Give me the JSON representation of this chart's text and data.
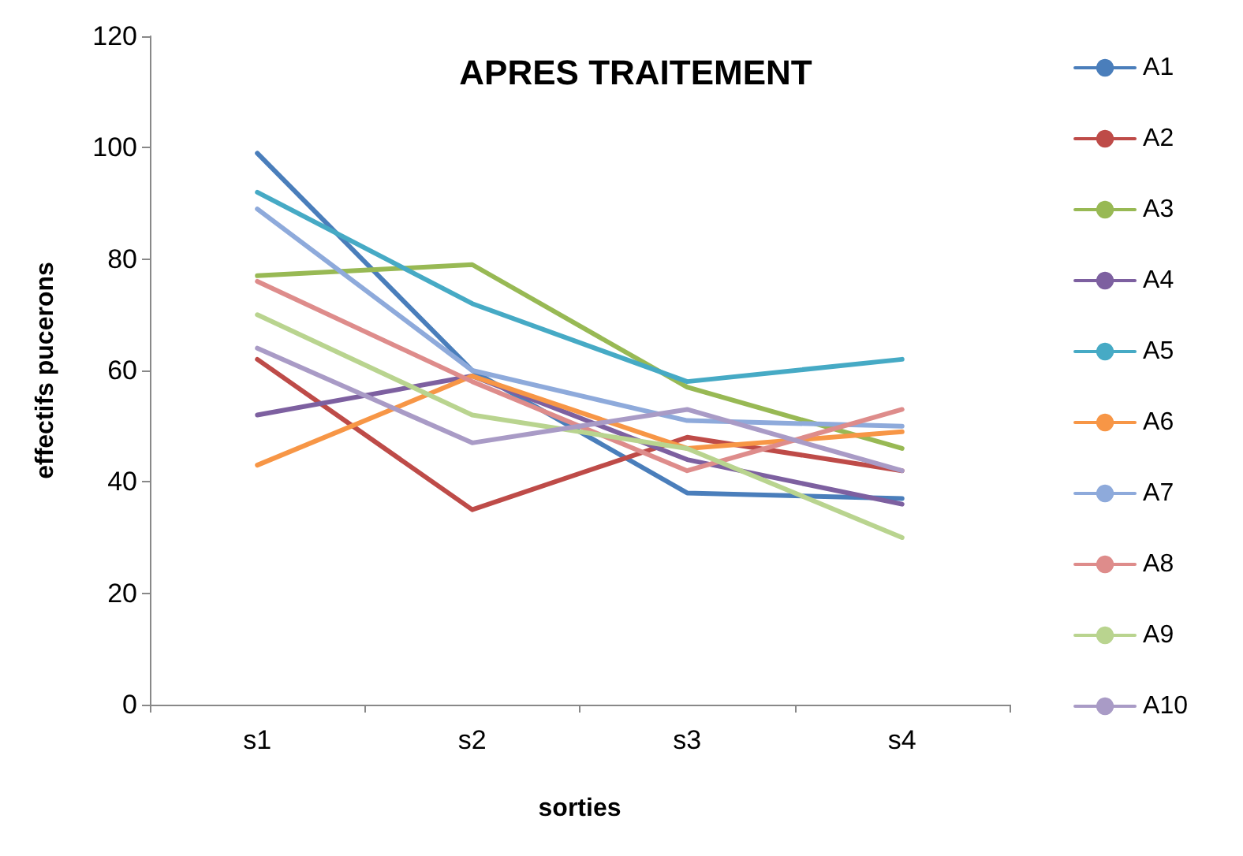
{
  "chart_data": {
    "type": "line",
    "title": "APRES TRAITEMENT",
    "xlabel": "sorties",
    "ylabel": "effectifs pucerons",
    "categories": [
      "s1",
      "s2",
      "s3",
      "s4"
    ],
    "series": [
      {
        "name": "A1",
        "color": "#4a7ebb",
        "values": [
          99,
          60,
          38,
          37
        ]
      },
      {
        "name": "A2",
        "color": "#be4b48",
        "values": [
          62,
          35,
          48,
          42
        ]
      },
      {
        "name": "A3",
        "color": "#98b954",
        "values": [
          77,
          79,
          57,
          46
        ]
      },
      {
        "name": "A4",
        "color": "#7d60a0",
        "values": [
          52,
          59,
          44,
          36
        ]
      },
      {
        "name": "A5",
        "color": "#46aac5",
        "values": [
          92,
          72,
          58,
          62
        ]
      },
      {
        "name": "A6",
        "color": "#f79646",
        "values": [
          43,
          59,
          46,
          49
        ]
      },
      {
        "name": "A7",
        "color": "#8eaadb",
        "values": [
          89,
          60,
          51,
          50
        ]
      },
      {
        "name": "A8",
        "color": "#de8c8b",
        "values": [
          76,
          58,
          42,
          53
        ]
      },
      {
        "name": "A9",
        "color": "#b9d48f",
        "values": [
          70,
          52,
          46,
          30
        ]
      },
      {
        "name": "A10",
        "color": "#a99bc6",
        "values": [
          64,
          47,
          53,
          42
        ]
      }
    ],
    "ylim": [
      0,
      120
    ],
    "yticks": [
      0,
      20,
      40,
      60,
      80,
      100,
      120
    ],
    "grid": false,
    "legend": "right",
    "marker": "none",
    "line_style": "solid"
  }
}
